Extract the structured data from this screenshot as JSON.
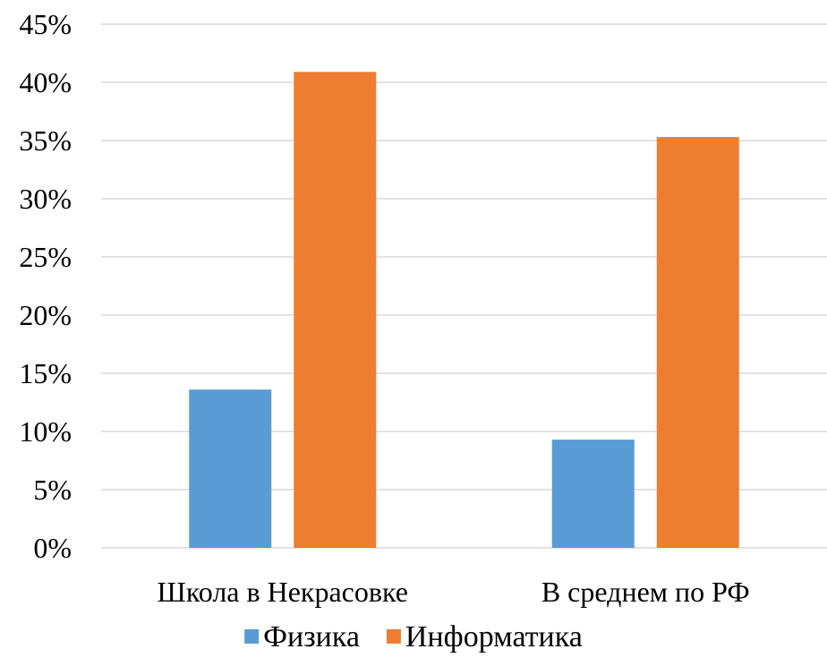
{
  "chart_data": {
    "type": "bar",
    "categories": [
      "Школа в Некрасовке",
      "В среднем по РФ"
    ],
    "series": [
      {
        "name": "Физика",
        "values": [
          13.6,
          9.3
        ],
        "color": "#5b9bd5"
      },
      {
        "name": "Информатика",
        "values": [
          40.9,
          35.3
        ],
        "color": "#ed7d31"
      }
    ],
    "ylim": [
      0,
      45
    ],
    "yticks": [
      "0%",
      "5%",
      "10%",
      "15%",
      "20%",
      "25%",
      "30%",
      "35%",
      "40%",
      "45%"
    ],
    "ytick_values": [
      0,
      5,
      10,
      15,
      20,
      25,
      30,
      35,
      40,
      45
    ],
    "grid": true,
    "legend_position": "bottom",
    "title": "",
    "xlabel": "",
    "ylabel": ""
  }
}
